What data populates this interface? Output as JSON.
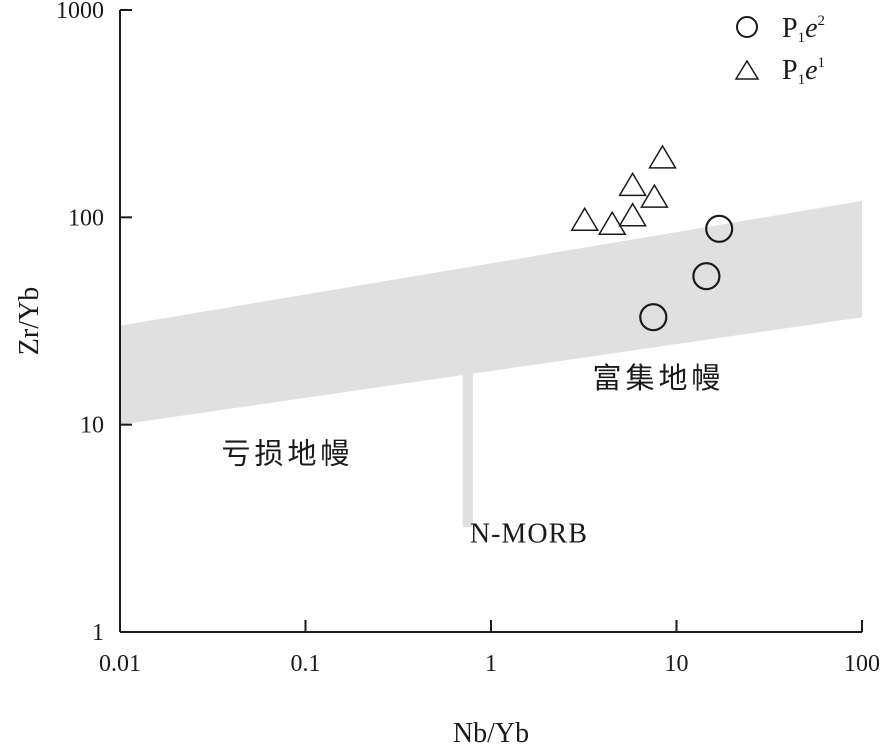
{
  "chart_data": {
    "type": "scatter",
    "xscale": "log",
    "yscale": "log",
    "xlim": [
      0.01,
      100
    ],
    "ylim": [
      1,
      1000
    ],
    "xlabel": "Nb/Yb",
    "ylabel": "Zr/Yb",
    "x_ticks": [
      {
        "value": 0.01,
        "label": "0.01"
      },
      {
        "value": 0.1,
        "label": "0.1"
      },
      {
        "value": 1,
        "label": "1"
      },
      {
        "value": 10,
        "label": "10"
      },
      {
        "value": 100,
        "label": "100"
      }
    ],
    "y_ticks": [
      {
        "value": 1,
        "label": "1"
      },
      {
        "value": 10,
        "label": "10"
      },
      {
        "value": 100,
        "label": "100"
      },
      {
        "value": 1000,
        "label": "1000"
      }
    ],
    "array_band": {
      "color": "#e0e0e0",
      "lower": [
        [
          0.01,
          10
        ],
        [
          100,
          33
        ]
      ],
      "upper": [
        [
          0.01,
          30
        ],
        [
          100,
          120
        ]
      ]
    },
    "nmorb_bar": {
      "x": 0.75,
      "y_from": 3.2,
      "y_to": 18,
      "color": "#e0e0e0"
    },
    "regions": [
      {
        "label": "富集地幔",
        "x": 8,
        "y": 15
      },
      {
        "label": "亏损地幔",
        "x": 0.08,
        "y": 6.5
      },
      {
        "label": "N-MORB",
        "x": 1.6,
        "y": 2.7
      }
    ],
    "series": [
      {
        "name": "P1e2",
        "marker": "circle",
        "points": [
          [
            7.5,
            33
          ],
          [
            14.5,
            52
          ],
          [
            17,
            88
          ]
        ]
      },
      {
        "name": "P1e1",
        "marker": "triangle",
        "points": [
          [
            3.2,
            95
          ],
          [
            4.5,
            91
          ],
          [
            5.8,
            100
          ],
          [
            5.8,
            140
          ],
          [
            7.6,
            123
          ],
          [
            8.4,
            190
          ]
        ]
      }
    ],
    "legend": {
      "position": "top-right",
      "entries": [
        {
          "marker": "circle",
          "main": "P",
          "sub": "1",
          "italic": "e",
          "sup": "2"
        },
        {
          "marker": "triangle",
          "main": "P",
          "sub": "1",
          "italic": "e",
          "sup": "1"
        }
      ]
    }
  }
}
